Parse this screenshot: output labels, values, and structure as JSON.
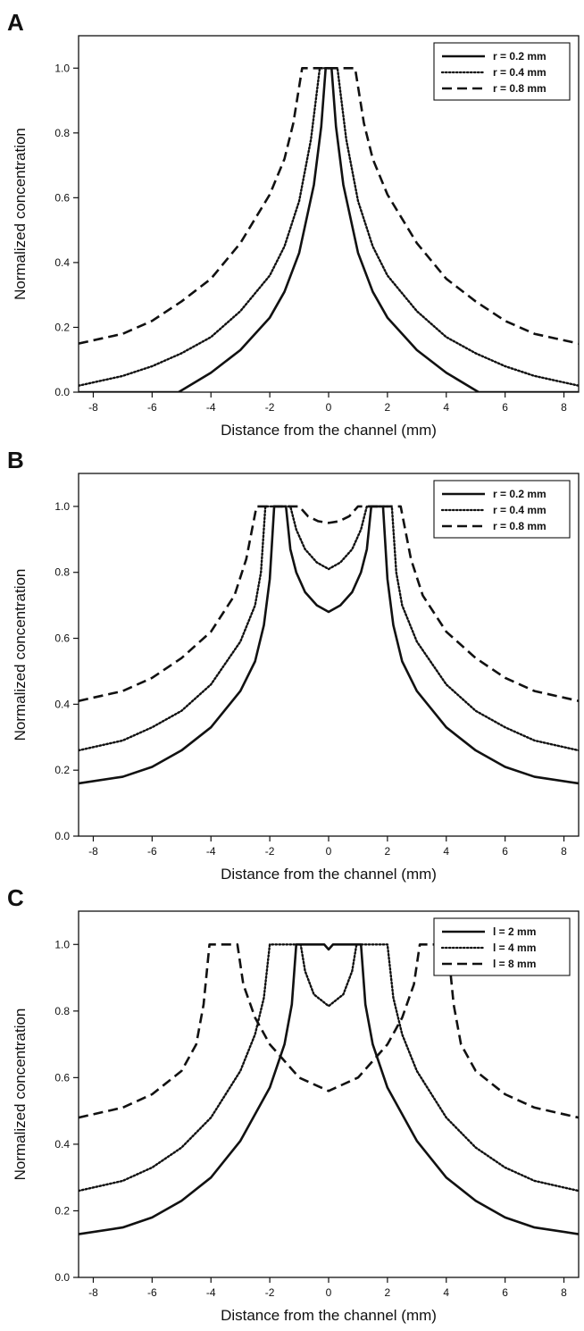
{
  "chart_data": [
    {
      "panel": "A",
      "type": "line",
      "xlabel": "Distance from the channel (mm)",
      "ylabel": "Normalized concentration",
      "xlim": [
        -8.5,
        8.5
      ],
      "ylim": [
        0.0,
        1.1
      ],
      "xticks": [
        "-8",
        "-6",
        "-4",
        "-2",
        "0",
        "2",
        "4",
        "6",
        "8"
      ],
      "yticks": [
        "0.0",
        "0.2",
        "0.4",
        "0.6",
        "0.8",
        "1.0"
      ],
      "legend_position": "top-right",
      "series": [
        {
          "name": "r = 0.2 mm",
          "style": "solid",
          "points": [
            [
              -8.5,
              0.0
            ],
            [
              -5.1,
              0.0
            ],
            [
              -4.0,
              0.06
            ],
            [
              -3.0,
              0.13
            ],
            [
              -2.0,
              0.23
            ],
            [
              -1.5,
              0.31
            ],
            [
              -1.0,
              0.43
            ],
            [
              -0.5,
              0.64
            ],
            [
              -0.25,
              0.82
            ],
            [
              -0.1,
              1.0
            ],
            [
              0.1,
              1.0
            ],
            [
              0.25,
              0.82
            ],
            [
              0.5,
              0.64
            ],
            [
              1.0,
              0.43
            ],
            [
              1.5,
              0.31
            ],
            [
              2.0,
              0.23
            ],
            [
              3.0,
              0.13
            ],
            [
              4.0,
              0.06
            ],
            [
              5.1,
              0.0
            ],
            [
              8.5,
              0.0
            ]
          ]
        },
        {
          "name": "r = 0.4 mm",
          "style": "dotted",
          "points": [
            [
              -8.5,
              0.02
            ],
            [
              -7.0,
              0.05
            ],
            [
              -6.0,
              0.08
            ],
            [
              -5.0,
              0.12
            ],
            [
              -4.0,
              0.17
            ],
            [
              -3.0,
              0.25
            ],
            [
              -2.0,
              0.36
            ],
            [
              -1.5,
              0.45
            ],
            [
              -1.0,
              0.59
            ],
            [
              -0.6,
              0.78
            ],
            [
              -0.3,
              1.0
            ],
            [
              0.3,
              1.0
            ],
            [
              0.6,
              0.78
            ],
            [
              1.0,
              0.59
            ],
            [
              1.5,
              0.45
            ],
            [
              2.0,
              0.36
            ],
            [
              3.0,
              0.25
            ],
            [
              4.0,
              0.17
            ],
            [
              5.0,
              0.12
            ],
            [
              6.0,
              0.08
            ],
            [
              7.0,
              0.05
            ],
            [
              8.5,
              0.02
            ]
          ]
        },
        {
          "name": "r = 0.8 mm",
          "style": "dashed",
          "points": [
            [
              -8.5,
              0.15
            ],
            [
              -7.0,
              0.18
            ],
            [
              -6.0,
              0.22
            ],
            [
              -5.0,
              0.28
            ],
            [
              -4.0,
              0.35
            ],
            [
              -3.0,
              0.46
            ],
            [
              -2.0,
              0.61
            ],
            [
              -1.5,
              0.72
            ],
            [
              -1.2,
              0.83
            ],
            [
              -0.9,
              1.0
            ],
            [
              0.9,
              1.0
            ],
            [
              1.2,
              0.83
            ],
            [
              1.5,
              0.72
            ],
            [
              2.0,
              0.61
            ],
            [
              3.0,
              0.46
            ],
            [
              4.0,
              0.35
            ],
            [
              5.0,
              0.28
            ],
            [
              6.0,
              0.22
            ],
            [
              7.0,
              0.18
            ],
            [
              8.5,
              0.15
            ]
          ]
        }
      ]
    },
    {
      "panel": "B",
      "type": "line",
      "xlabel": "Distance from the channel (mm)",
      "ylabel": "Normalized concentration",
      "xlim": [
        -8.5,
        8.5
      ],
      "ylim": [
        0.0,
        1.1
      ],
      "xticks": [
        "-8",
        "-6",
        "-4",
        "-2",
        "0",
        "2",
        "4",
        "6",
        "8"
      ],
      "yticks": [
        "0.0",
        "0.2",
        "0.4",
        "0.6",
        "0.8",
        "1.0"
      ],
      "legend_position": "top-right",
      "series": [
        {
          "name": "r = 0.2 mm",
          "style": "solid",
          "points": [
            [
              -8.5,
              0.16
            ],
            [
              -7.0,
              0.18
            ],
            [
              -6.0,
              0.21
            ],
            [
              -5.0,
              0.26
            ],
            [
              -4.0,
              0.33
            ],
            [
              -3.0,
              0.44
            ],
            [
              -2.5,
              0.53
            ],
            [
              -2.2,
              0.64
            ],
            [
              -2.0,
              0.78
            ],
            [
              -1.85,
              1.0
            ],
            [
              -1.45,
              1.0
            ],
            [
              -1.3,
              0.87
            ],
            [
              -1.1,
              0.8
            ],
            [
              -0.8,
              0.74
            ],
            [
              -0.4,
              0.7
            ],
            [
              0.0,
              0.68
            ],
            [
              0.4,
              0.7
            ],
            [
              0.8,
              0.74
            ],
            [
              1.1,
              0.8
            ],
            [
              1.3,
              0.87
            ],
            [
              1.45,
              1.0
            ],
            [
              1.85,
              1.0
            ],
            [
              2.0,
              0.78
            ],
            [
              2.2,
              0.64
            ],
            [
              2.5,
              0.53
            ],
            [
              3.0,
              0.44
            ],
            [
              4.0,
              0.33
            ],
            [
              5.0,
              0.26
            ],
            [
              6.0,
              0.21
            ],
            [
              7.0,
              0.18
            ],
            [
              8.5,
              0.16
            ]
          ]
        },
        {
          "name": "r = 0.4 mm",
          "style": "dotted",
          "points": [
            [
              -8.5,
              0.26
            ],
            [
              -7.0,
              0.29
            ],
            [
              -6.0,
              0.33
            ],
            [
              -5.0,
              0.38
            ],
            [
              -4.0,
              0.46
            ],
            [
              -3.0,
              0.59
            ],
            [
              -2.5,
              0.7
            ],
            [
              -2.3,
              0.8
            ],
            [
              -2.15,
              1.0
            ],
            [
              -1.3,
              1.0
            ],
            [
              -1.1,
              0.93
            ],
            [
              -0.8,
              0.87
            ],
            [
              -0.4,
              0.83
            ],
            [
              0.0,
              0.81
            ],
            [
              0.4,
              0.83
            ],
            [
              0.8,
              0.87
            ],
            [
              1.1,
              0.93
            ],
            [
              1.3,
              1.0
            ],
            [
              2.15,
              1.0
            ],
            [
              2.3,
              0.8
            ],
            [
              2.5,
              0.7
            ],
            [
              3.0,
              0.59
            ],
            [
              4.0,
              0.46
            ],
            [
              5.0,
              0.38
            ],
            [
              6.0,
              0.33
            ],
            [
              7.0,
              0.29
            ],
            [
              8.5,
              0.26
            ]
          ]
        },
        {
          "name": "r = 0.8 mm",
          "style": "dashed",
          "points": [
            [
              -8.5,
              0.41
            ],
            [
              -7.0,
              0.44
            ],
            [
              -6.0,
              0.48
            ],
            [
              -5.0,
              0.54
            ],
            [
              -4.0,
              0.62
            ],
            [
              -3.2,
              0.73
            ],
            [
              -2.8,
              0.84
            ],
            [
              -2.45,
              1.0
            ],
            [
              -1.0,
              1.0
            ],
            [
              -0.7,
              0.97
            ],
            [
              -0.35,
              0.955
            ],
            [
              0.0,
              0.95
            ],
            [
              0.35,
              0.955
            ],
            [
              0.7,
              0.97
            ],
            [
              1.0,
              1.0
            ],
            [
              2.45,
              1.0
            ],
            [
              2.8,
              0.84
            ],
            [
              3.2,
              0.73
            ],
            [
              4.0,
              0.62
            ],
            [
              5.0,
              0.54
            ],
            [
              6.0,
              0.48
            ],
            [
              7.0,
              0.44
            ],
            [
              8.5,
              0.41
            ]
          ]
        }
      ]
    },
    {
      "panel": "C",
      "type": "line",
      "xlabel": "Distance from the channel (mm)",
      "ylabel": "Normalized concentration",
      "xlim": [
        -8.5,
        8.5
      ],
      "ylim": [
        0.0,
        1.1
      ],
      "xticks": [
        "-8",
        "-6",
        "-4",
        "-2",
        "0",
        "2",
        "4",
        "6",
        "8"
      ],
      "yticks": [
        "0.0",
        "0.2",
        "0.4",
        "0.6",
        "0.8",
        "1.0"
      ],
      "legend_position": "top-right",
      "series": [
        {
          "name": "l = 2 mm",
          "style": "solid",
          "points": [
            [
              -8.5,
              0.13
            ],
            [
              -7.0,
              0.15
            ],
            [
              -6.0,
              0.18
            ],
            [
              -5.0,
              0.23
            ],
            [
              -4.0,
              0.3
            ],
            [
              -3.0,
              0.41
            ],
            [
              -2.0,
              0.57
            ],
            [
              -1.5,
              0.7
            ],
            [
              -1.25,
              0.82
            ],
            [
              -1.1,
              1.0
            ],
            [
              -0.15,
              1.0
            ],
            [
              0.0,
              0.985
            ],
            [
              0.15,
              1.0
            ],
            [
              1.1,
              1.0
            ],
            [
              1.25,
              0.82
            ],
            [
              1.5,
              0.7
            ],
            [
              2.0,
              0.57
            ],
            [
              3.0,
              0.41
            ],
            [
              4.0,
              0.3
            ],
            [
              5.0,
              0.23
            ],
            [
              6.0,
              0.18
            ],
            [
              7.0,
              0.15
            ],
            [
              8.5,
              0.13
            ]
          ]
        },
        {
          "name": "l = 4 mm",
          "style": "dotted",
          "points": [
            [
              -8.5,
              0.26
            ],
            [
              -7.0,
              0.29
            ],
            [
              -6.0,
              0.33
            ],
            [
              -5.0,
              0.39
            ],
            [
              -4.0,
              0.48
            ],
            [
              -3.0,
              0.62
            ],
            [
              -2.5,
              0.73
            ],
            [
              -2.2,
              0.84
            ],
            [
              -2.0,
              1.0
            ],
            [
              -0.95,
              1.0
            ],
            [
              -0.8,
              0.92
            ],
            [
              -0.5,
              0.85
            ],
            [
              0.0,
              0.815
            ],
            [
              0.5,
              0.85
            ],
            [
              0.8,
              0.92
            ],
            [
              0.95,
              1.0
            ],
            [
              2.0,
              1.0
            ],
            [
              2.2,
              0.84
            ],
            [
              2.5,
              0.73
            ],
            [
              3.0,
              0.62
            ],
            [
              4.0,
              0.48
            ],
            [
              5.0,
              0.39
            ],
            [
              6.0,
              0.33
            ],
            [
              7.0,
              0.29
            ],
            [
              8.5,
              0.26
            ]
          ]
        },
        {
          "name": "l = 8 mm",
          "style": "dashed",
          "points": [
            [
              -8.5,
              0.48
            ],
            [
              -7.0,
              0.51
            ],
            [
              -6.0,
              0.55
            ],
            [
              -5.0,
              0.62
            ],
            [
              -4.5,
              0.7
            ],
            [
              -4.25,
              0.82
            ],
            [
              -4.05,
              1.0
            ],
            [
              -3.1,
              1.0
            ],
            [
              -2.9,
              0.88
            ],
            [
              -2.5,
              0.78
            ],
            [
              -2.0,
              0.7
            ],
            [
              -1.0,
              0.6
            ],
            [
              0.0,
              0.56
            ],
            [
              1.0,
              0.6
            ],
            [
              2.0,
              0.7
            ],
            [
              2.5,
              0.78
            ],
            [
              2.9,
              0.88
            ],
            [
              3.1,
              1.0
            ],
            [
              4.05,
              1.0
            ],
            [
              4.25,
              0.82
            ],
            [
              4.5,
              0.7
            ],
            [
              5.0,
              0.62
            ],
            [
              6.0,
              0.55
            ],
            [
              7.0,
              0.51
            ],
            [
              8.5,
              0.48
            ]
          ]
        }
      ]
    }
  ]
}
